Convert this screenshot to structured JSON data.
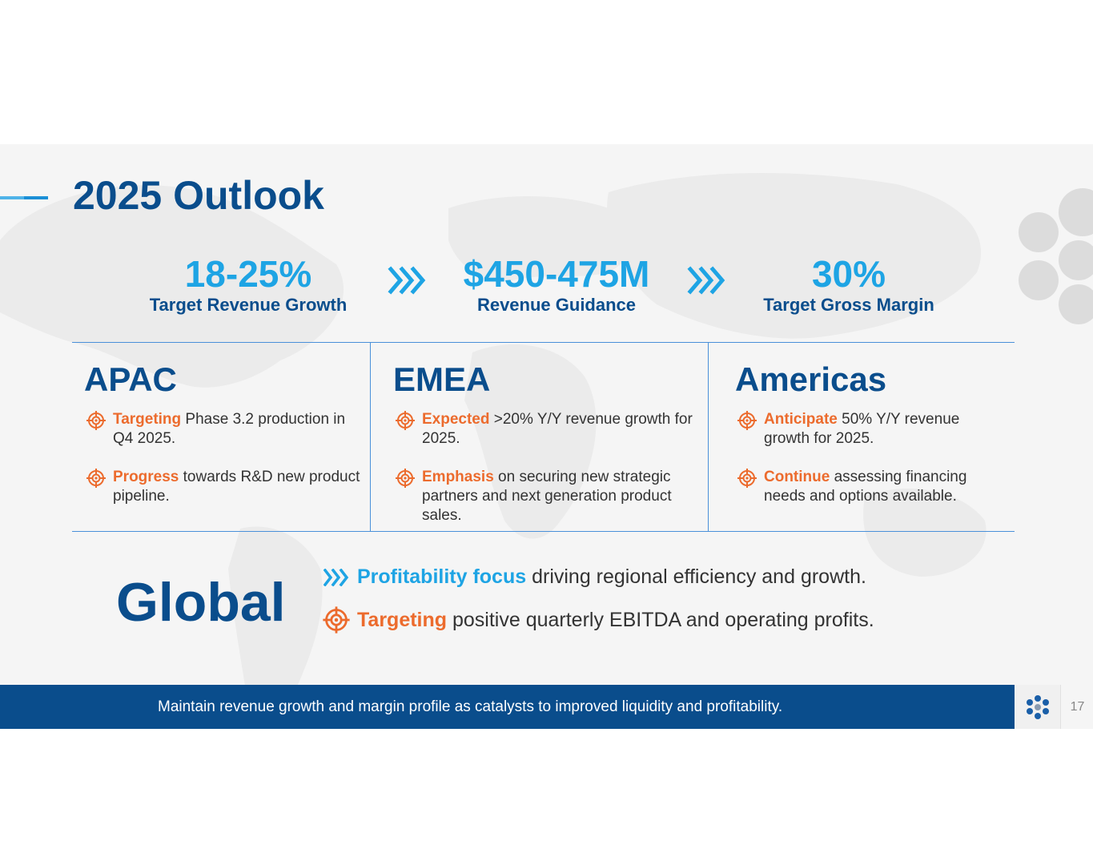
{
  "title": "2025 Outlook",
  "metrics": [
    {
      "value": "18-25%",
      "label": "Target Revenue Growth"
    },
    {
      "value": "$450-475M",
      "label": "Revenue Guidance"
    },
    {
      "value": "30%",
      "label": "Target Gross Margin"
    }
  ],
  "regions": [
    {
      "name": "APAC",
      "items": [
        {
          "keyword": "Targeting",
          "text": " Phase 3.2 production in Q4 2025."
        },
        {
          "keyword": "Progress",
          "text": " towards R&D new product pipeline."
        }
      ]
    },
    {
      "name": "EMEA",
      "items": [
        {
          "keyword": "Expected",
          "text": " >20% Y/Y revenue growth for 2025."
        },
        {
          "keyword": "Emphasis",
          "text": " on securing new strategic partners and next generation product sales."
        }
      ]
    },
    {
      "name": "Americas",
      "items": [
        {
          "keyword": "Anticipate",
          "text": " 50% Y/Y revenue growth for 2025."
        },
        {
          "keyword": "Continue",
          "text": " assessing financing needs and options available."
        }
      ]
    }
  ],
  "global": {
    "label": "Global",
    "lines": [
      {
        "keyword": "Profitability focus",
        "text": " driving regional efficiency and growth."
      },
      {
        "keyword": "Targeting",
        "text": " positive quarterly EBITDA and operating profits."
      }
    ]
  },
  "footer": {
    "text": "Maintain revenue growth and margin profile as catalysts to improved liquidity and profitability.",
    "page_number": "17"
  },
  "colors": {
    "navy": "#0a4d8c",
    "light_blue": "#1ea4e4",
    "orange": "#ec6b2d",
    "background": "#f5f5f5"
  },
  "icons": [
    "chevron-right-icon",
    "target-icon",
    "company-logo-icon"
  ]
}
